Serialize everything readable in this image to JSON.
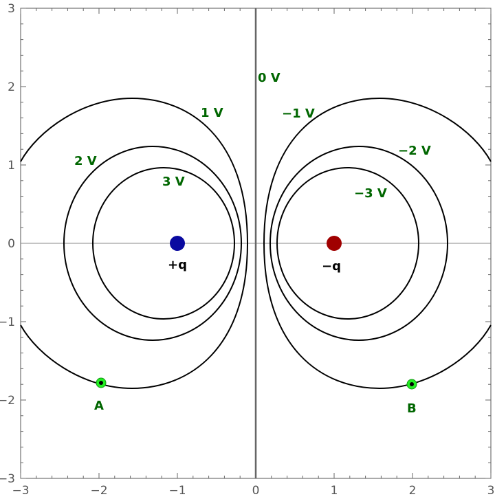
{
  "axes": {
    "x_range": [
      -3,
      3
    ],
    "y_range": [
      -3,
      3
    ],
    "x_ticks": [
      -3,
      -2,
      -1,
      0,
      1,
      2,
      3
    ],
    "y_ticks": [
      -3,
      -2,
      -1,
      0,
      1,
      2,
      3
    ],
    "x_tick_labels": [
      "−3",
      "−2",
      "−1",
      "0",
      "1",
      "2",
      "3"
    ],
    "y_tick_labels": [
      "−3",
      "−2",
      "−1",
      "0",
      "1",
      "2",
      "3"
    ]
  },
  "colors": {
    "label_green": "#006600",
    "point_green": "#22ee22",
    "positive_charge": "#0a0aa0",
    "negative_charge": "#a00000"
  },
  "charges": [
    {
      "name": "positive-charge",
      "label": "+q",
      "x": -1,
      "y": 0,
      "sign": "+"
    },
    {
      "name": "negative-charge",
      "label": "−q",
      "x": 1,
      "y": 0,
      "sign": "-"
    }
  ],
  "equipotentials": [
    {
      "label": "1 V",
      "value": 1
    },
    {
      "label": "2 V",
      "value": 2
    },
    {
      "label": "3 V",
      "value": 3
    },
    {
      "label": "0 V",
      "value": 0
    },
    {
      "label": "−1 V",
      "value": -1
    },
    {
      "label": "−2 V",
      "value": -2
    },
    {
      "label": "−3 V",
      "value": -3
    }
  ],
  "points": [
    {
      "name": "point-a",
      "label": "A",
      "x": -2,
      "y": -1.8
    },
    {
      "name": "point-b",
      "label": "B",
      "x": 2,
      "y": -1.8
    }
  ]
}
